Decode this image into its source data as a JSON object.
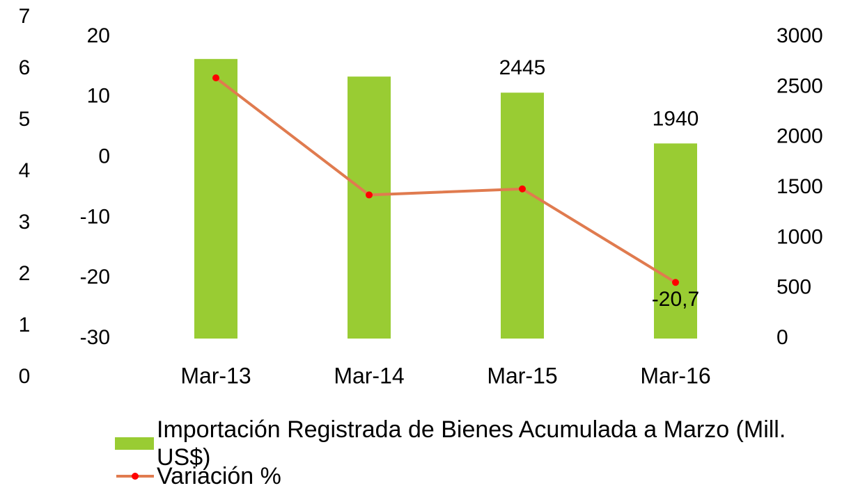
{
  "chart_data": {
    "type": "bar-line",
    "categories": [
      "Mar-13",
      "Mar-14",
      "Mar-15",
      "Mar-16"
    ],
    "series": [
      {
        "name": "Importación Registrada de Bienes Acumulada a Marzo (Mill. US$)",
        "type": "bar",
        "axis": "y2",
        "color": "#99cc33",
        "values": [
          2780,
          2605,
          2445,
          1940
        ],
        "value_labels": [
          null,
          null,
          "2445",
          "1940"
        ]
      },
      {
        "name": "Variación %",
        "type": "line",
        "axis": "y",
        "color": "#e07b4f",
        "marker_color": "#ff0000",
        "values": [
          13.2,
          -6.2,
          -5.2,
          -20.7
        ],
        "value_labels": [
          null,
          null,
          null,
          "-20,7"
        ]
      }
    ],
    "ylim": [
      -30,
      20
    ],
    "yticks": [
      -30,
      -20,
      -10,
      0,
      10,
      20
    ],
    "y2lim": [
      0,
      3000
    ],
    "y2ticks": [
      0,
      500,
      1000,
      1500,
      2000,
      2500,
      3000
    ],
    "y3lim": [
      0,
      7
    ],
    "y3ticks": [
      0,
      1,
      2,
      3,
      4,
      5,
      6,
      7
    ]
  }
}
